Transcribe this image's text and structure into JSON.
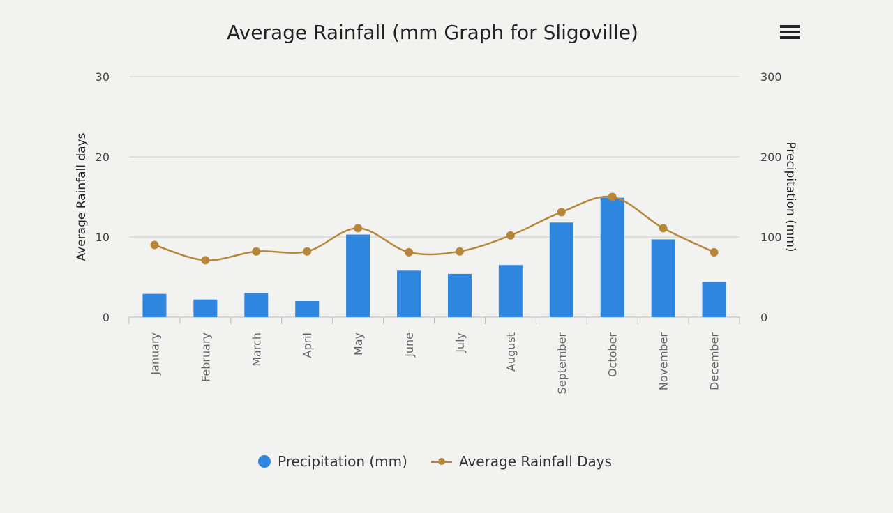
{
  "chart_data": {
    "type": "bar+line",
    "title": "Average Rainfall (mm Graph for Sligoville)",
    "categories": [
      "January",
      "February",
      "March",
      "April",
      "May",
      "June",
      "July",
      "August",
      "September",
      "October",
      "November",
      "December"
    ],
    "series": [
      {
        "name": "Precipitation (mm)",
        "type": "bar",
        "axis": "right",
        "color": "#2e86de",
        "values": [
          29,
          22,
          30,
          20,
          103,
          58,
          54,
          65,
          118,
          149,
          97,
          44
        ]
      },
      {
        "name": "Average Rainfall Days",
        "type": "spline",
        "axis": "left",
        "color": "#b8863b",
        "values": [
          9.0,
          7.1,
          8.2,
          8.2,
          11.1,
          8.1,
          8.2,
          10.2,
          13.1,
          15.0,
          11.1,
          8.1
        ]
      }
    ],
    "y_left": {
      "label": "Average Rainfall days",
      "ylim": [
        0,
        30
      ],
      "ticks": [
        0,
        10,
        20,
        30
      ]
    },
    "y_right": {
      "label": "Precipitation (mm)",
      "ylim": [
        0,
        300
      ],
      "ticks": [
        0,
        100,
        200,
        300
      ]
    },
    "grid": true,
    "legend": "bottom"
  },
  "menu_icon": "hamburger-menu-icon"
}
